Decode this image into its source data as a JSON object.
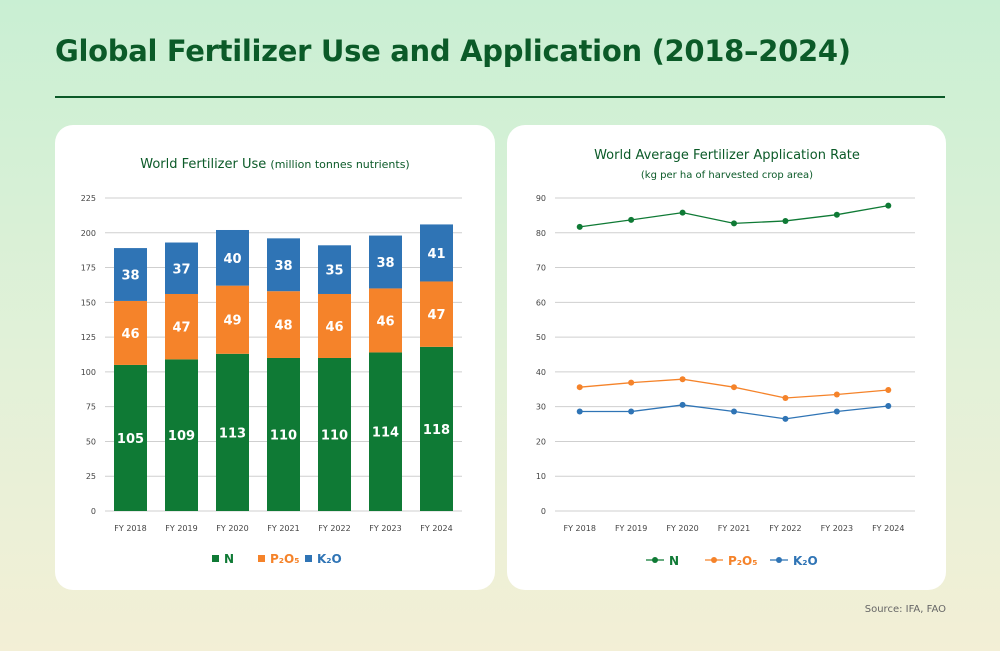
{
  "title": "Global Fertilizer Use and Application (2018–2024)",
  "source": "Source: IFA, FAO",
  "colors": {
    "N": "#0f7a35",
    "P2O5": "#f5832a",
    "K2O": "#2f74b5",
    "title": "#0b5a28"
  },
  "chart_data": [
    {
      "type": "bar",
      "stacked": true,
      "title": "World Fertilizer Use",
      "title_unit": "(million tonnes nutrients)",
      "categories": [
        "FY 2018",
        "FY 2019",
        "FY 2020",
        "FY 2021",
        "FY 2022",
        "FY 2023",
        "FY 2024"
      ],
      "series": [
        {
          "name": "N",
          "values": [
            105,
            109,
            113,
            110,
            110,
            114,
            118
          ]
        },
        {
          "name": "P₂O₅",
          "values": [
            46,
            47,
            49,
            48,
            46,
            46,
            47
          ]
        },
        {
          "name": "K₂O",
          "values": [
            38,
            37,
            40,
            38,
            35,
            38,
            41
          ]
        }
      ],
      "ylim": [
        0,
        225
      ],
      "yticks": [
        0,
        25,
        50,
        75,
        100,
        125,
        150,
        175,
        200,
        225
      ],
      "grid": true,
      "legend": "bottom"
    },
    {
      "type": "line",
      "title": "World Average Fertilizer Application Rate",
      "subtitle": "(kg per ha of harvested crop area)",
      "categories": [
        "FY 2018",
        "FY 2019",
        "FY 2020",
        "FY 2021",
        "FY 2022",
        "FY 2023",
        "FY 2024"
      ],
      "series": [
        {
          "name": "N",
          "values": [
            81.7,
            83.7,
            85.8,
            82.7,
            83.4,
            85.2,
            87.8
          ]
        },
        {
          "name": "P₂O₅",
          "values": [
            35.6,
            36.9,
            37.9,
            35.6,
            32.5,
            33.5,
            34.8
          ]
        },
        {
          "name": "K₂O",
          "values": [
            28.6,
            28.6,
            30.5,
            28.6,
            26.5,
            28.6,
            30.2
          ]
        }
      ],
      "ylim": [
        0,
        90
      ],
      "yticks": [
        0,
        10,
        20,
        30,
        40,
        50,
        60,
        70,
        80,
        90
      ],
      "grid": true,
      "legend": "bottom"
    }
  ]
}
